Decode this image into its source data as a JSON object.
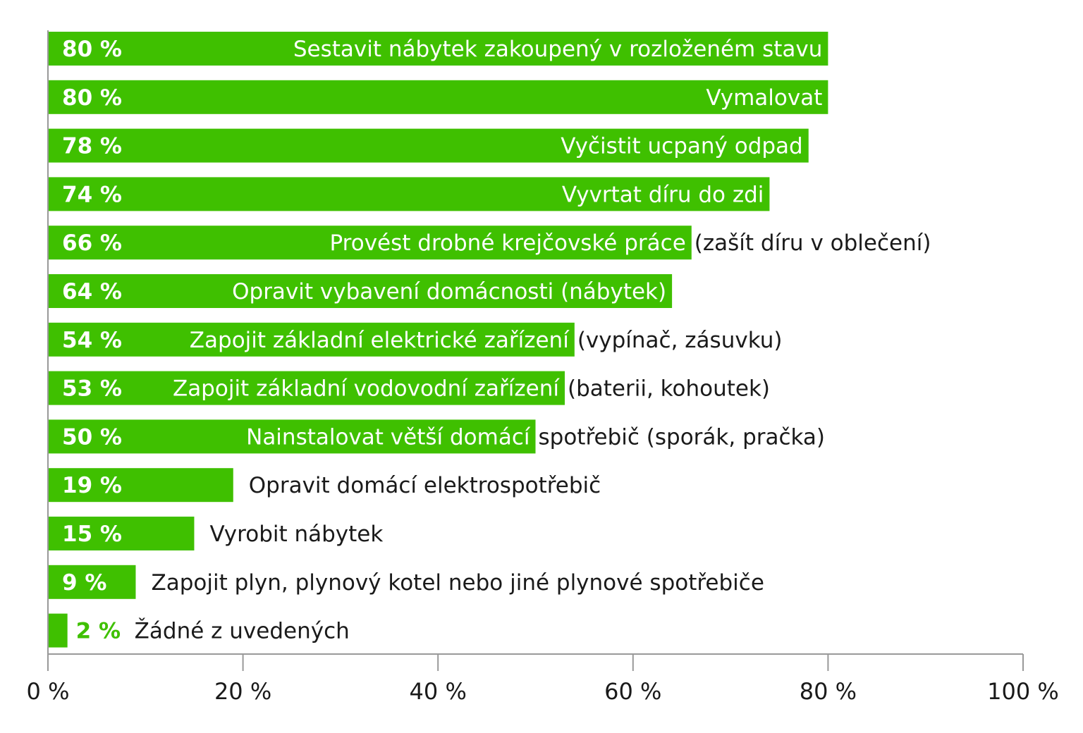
{
  "chart_data": {
    "type": "bar",
    "orientation": "horizontal",
    "title": "",
    "xlabel": "",
    "ylabel": "",
    "xlim": [
      0,
      100
    ],
    "grid": false,
    "legend": "none",
    "bar_color": "#3fc000",
    "text_on_bar_color": "#ffffff",
    "text_off_bar_color": "#1a1a1a",
    "axis_color": "#999999",
    "x_ticks": [
      "0 %",
      "20 %",
      "40 %",
      "60 %",
      "80 %",
      "100 %"
    ],
    "x_tick_values": [
      0,
      20,
      40,
      60,
      80,
      100
    ],
    "bars": [
      {
        "value": 80,
        "value_label": "80 %",
        "label": "Sestavit nábytek zakoupený v rozloženém stavu",
        "label_on_bar": "Sestavit nábytek zakoupený v rozloženém stavu",
        "label_rest": ""
      },
      {
        "value": 80,
        "value_label": "80 %",
        "label": "Vymalovat",
        "label_on_bar": "Vymalovat",
        "label_rest": ""
      },
      {
        "value": 78,
        "value_label": "78 %",
        "label": "Vyčistit ucpaný odpad",
        "label_on_bar": "Vyčistit ucpaný odpad",
        "label_rest": ""
      },
      {
        "value": 74,
        "value_label": "74 %",
        "label": "Vyvrtat díru do zdi",
        "label_on_bar": "Vyvrtat díru do zdi",
        "label_rest": ""
      },
      {
        "value": 66,
        "value_label": "66 %",
        "label": "Provést drobné krejčovské práce (zašít díru v oblečení)",
        "label_on_bar": "Provést drobné krejčovské práce",
        "label_rest": "(zašít díru v oblečení)"
      },
      {
        "value": 64,
        "value_label": "64 %",
        "label": "Opravit vybavení domácnosti (nábytek)",
        "label_on_bar": "Opravit vybavení domácnosti (nábytek)",
        "label_rest": ""
      },
      {
        "value": 54,
        "value_label": "54 %",
        "label": "Zapojit základní elektrické zařízení (vypínač, zásuvku)",
        "label_on_bar": "Zapojit základní elektrické zařízení",
        "label_rest": "(vypínač, zásuvku)"
      },
      {
        "value": 53,
        "value_label": "53 %",
        "label": "Zapojit základní vodovodní zařízení (baterii, kohoutek)",
        "label_on_bar": "Zapojit základní vodovodní zařízení",
        "label_rest": "(baterii, kohoutek)"
      },
      {
        "value": 50,
        "value_label": "50 %",
        "label": "Nainstalovat větší domácí spotřebič (sporák, pračka)",
        "label_on_bar": "Nainstalovat větší domácí",
        "label_rest": "spotřebič (sporák, pračka)"
      },
      {
        "value": 19,
        "value_label": "19 %",
        "label": "Opravit domácí elektrospotřebič",
        "label_on_bar": "",
        "label_rest": "Opravit domácí elektrospotřebič"
      },
      {
        "value": 15,
        "value_label": "15 %",
        "label": "Vyrobit nábytek",
        "label_on_bar": "",
        "label_rest": "Vyrobit nábytek"
      },
      {
        "value": 9,
        "value_label": "9 %",
        "label": "Zapojit plyn, plynový kotel nebo jiné plynové spotřebiče",
        "label_on_bar": "",
        "label_rest": "Zapojit plyn, plynový kotel nebo jiné plynové spotřebiče"
      },
      {
        "value": 2,
        "value_label": "2 %",
        "label": "Žádné z uvedených",
        "label_on_bar": "",
        "label_rest": "Žádné z uvedených"
      }
    ]
  }
}
